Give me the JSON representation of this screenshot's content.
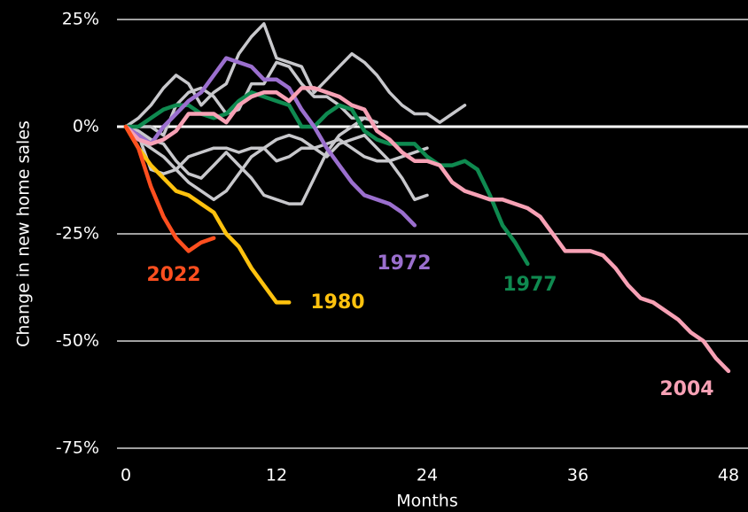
{
  "chart_data": {
    "type": "line",
    "y_label": "Change in new home sales",
    "x_label": "Months",
    "x": [
      0,
      1,
      2,
      3,
      4,
      5,
      6,
      7,
      8,
      9,
      10,
      11,
      12,
      13,
      14,
      15,
      16,
      17,
      18,
      19,
      20,
      21,
      22,
      23,
      24,
      25,
      26,
      27,
      28,
      29,
      30,
      31,
      32,
      33,
      34,
      35,
      36,
      37,
      38,
      39,
      40,
      41,
      42,
      43,
      44,
      45,
      46,
      47,
      48
    ],
    "xlim": [
      0,
      48
    ],
    "xticks": [
      0,
      12,
      24,
      36,
      48
    ],
    "ylim": [
      -75,
      25
    ],
    "yticks": [
      {
        "value": -75,
        "label": "-75%"
      },
      {
        "value": -50,
        "label": "-50%"
      },
      {
        "value": -25,
        "label": "-25%"
      },
      {
        "value": 0,
        "label": "0%"
      },
      {
        "value": 25,
        "label": "25%"
      }
    ],
    "grid": true,
    "series": [
      {
        "color": "#c8c8cc",
        "values": [
          0,
          2,
          5,
          9,
          12,
          10,
          5,
          8,
          10,
          17,
          21,
          24,
          16,
          15,
          14,
          8,
          11,
          14,
          17,
          15,
          12,
          8,
          5,
          3,
          3,
          1,
          3,
          5,
          null,
          null,
          null,
          null,
          null,
          null,
          null,
          null,
          null,
          null,
          null,
          null,
          null,
          null,
          null,
          null,
          null,
          null,
          null,
          null,
          null
        ]
      },
      {
        "color": "#c8c8cc",
        "values": [
          0,
          -3,
          -5,
          -7,
          -10,
          -13,
          -15,
          -17,
          -15,
          -11,
          -7,
          -5,
          -3,
          -2,
          -3,
          -5,
          -7,
          -4,
          -3,
          -2,
          -5,
          -8,
          -12,
          -17,
          -16,
          null,
          null,
          null,
          null,
          null,
          null,
          null,
          null,
          null,
          null,
          null,
          null,
          null,
          null,
          null,
          null,
          null,
          null,
          null,
          null,
          null,
          null,
          null,
          null
        ]
      },
      {
        "color": "#c8c8cc",
        "values": [
          0,
          -1,
          -3,
          -4,
          -8,
          -11,
          -12,
          -9,
          -6,
          -9,
          -12,
          -16,
          -17,
          -18,
          -18,
          -12,
          -6,
          -2,
          0,
          2,
          1,
          null,
          null,
          null,
          null,
          null,
          null,
          null,
          null,
          null,
          null,
          null,
          null,
          null,
          null,
          null,
          null,
          null,
          null,
          null,
          null,
          null,
          null,
          null,
          null,
          null,
          null,
          null,
          null
        ]
      },
      {
        "color": "#c8c8cc",
        "values": [
          0,
          -2,
          -10,
          -11,
          -10,
          -7,
          -6,
          -5,
          -5,
          -6,
          -5,
          -5,
          -8,
          -7,
          -5,
          -5,
          -4,
          -3,
          -5,
          -7,
          -8,
          -8,
          -7,
          -6,
          -5,
          null,
          null,
          null,
          null,
          null,
          null,
          null,
          null,
          null,
          null,
          null,
          null,
          null,
          null,
          null,
          null,
          null,
          null,
          null,
          null,
          null,
          null,
          null,
          null
        ]
      },
      {
        "color": "#c8c8cc",
        "values": [
          0,
          0,
          0,
          -2,
          5,
          8,
          9,
          7,
          3,
          4,
          10,
          10,
          15,
          14,
          10,
          7,
          7,
          5,
          2,
          2,
          null,
          null,
          null,
          null,
          null,
          null,
          null,
          null,
          null,
          null,
          null,
          null,
          null,
          null,
          null,
          null,
          null,
          null,
          null,
          null,
          null,
          null,
          null,
          null,
          null,
          null,
          null,
          null,
          null
        ]
      },
      {
        "name": "1977",
        "color": "#0f8a50",
        "values": [
          0,
          0,
          2,
          4,
          5,
          5,
          3,
          2,
          3,
          6,
          8,
          7,
          6,
          5,
          0,
          0,
          3,
          5,
          4,
          -1,
          -3,
          -4,
          -4,
          -4,
          -7,
          -9,
          -9,
          -8,
          -10,
          -16,
          -23,
          -27,
          -32,
          null,
          null,
          null,
          null,
          null,
          null,
          null,
          null,
          null,
          null,
          null,
          null,
          null,
          null,
          null,
          null
        ]
      },
      {
        "name": "1972",
        "color": "#9b6fce",
        "values": [
          0,
          -2,
          -4,
          0,
          3,
          6,
          8,
          12,
          16,
          15,
          14,
          11,
          11,
          9,
          4,
          0,
          -5,
          -9,
          -13,
          -16,
          -17,
          -18,
          -20,
          -23,
          null,
          null,
          null,
          null,
          null,
          null,
          null,
          null,
          null,
          null,
          null,
          null,
          null,
          null,
          null,
          null,
          null,
          null,
          null,
          null,
          null,
          null,
          null,
          null,
          null
        ]
      },
      {
        "name": "2004",
        "color": "#f7a1b5",
        "values": [
          0,
          -3,
          -4,
          -3,
          -1,
          3,
          3,
          3,
          1,
          5,
          7,
          8,
          8,
          6,
          9,
          9,
          8,
          7,
          5,
          4,
          -1,
          -3,
          -6,
          -8,
          -8,
          -9,
          -13,
          -15,
          -16,
          -17,
          -17,
          -18,
          -19,
          -21,
          -25,
          -29,
          -29,
          -29,
          -30,
          -33,
          -37,
          -40,
          -41,
          -43,
          -45,
          -48,
          -50,
          -54,
          -57
        ]
      },
      {
        "name": "1980",
        "color": "#ffc20e",
        "values": [
          0,
          -5,
          -9,
          -12,
          -15,
          -16,
          -18,
          -20,
          -25,
          -28,
          -33,
          -37,
          -41,
          -41,
          null,
          null,
          null,
          null,
          null,
          null,
          null,
          null,
          null,
          null,
          null,
          null,
          null,
          null,
          null,
          null,
          null,
          null,
          null,
          null,
          null,
          null,
          null,
          null,
          null,
          null,
          null,
          null,
          null,
          null,
          null,
          null,
          null,
          null,
          null
        ]
      },
      {
        "name": "2022",
        "color": "#ff4f1f",
        "values": [
          0,
          -5,
          -14,
          -21,
          -26,
          -29,
          -27,
          -26,
          null,
          null,
          null,
          null,
          null,
          null,
          null,
          null,
          null,
          null,
          null,
          null,
          null,
          null,
          null,
          null,
          null,
          null,
          null,
          null,
          null,
          null,
          null,
          null,
          null,
          null,
          null,
          null,
          null,
          null,
          null,
          null,
          null,
          null,
          null,
          null,
          null,
          null,
          null,
          null,
          null
        ]
      }
    ]
  }
}
